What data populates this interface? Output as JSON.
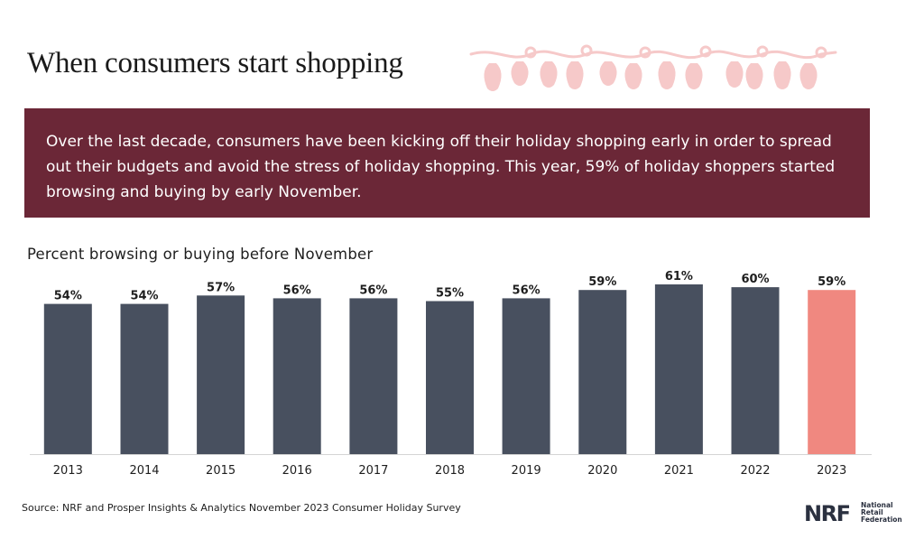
{
  "header": {
    "title": "When consumers start shopping"
  },
  "banner": {
    "text": "Over the last decade, consumers have been kicking off their holiday shopping early in order to spread out their budgets and avoid the stress of holiday shopping. This year, 59% of holiday shoppers started browsing and buying by early November."
  },
  "colors": {
    "bar_default": "#48505f",
    "bar_highlight": "#f08880",
    "banner_bg": "#6b2737",
    "lights": "#f6c9c9"
  },
  "chart_data": {
    "type": "bar",
    "title": "Percent browsing or buying before November",
    "xlabel": "",
    "ylabel": "",
    "ylim": [
      0,
      61
    ],
    "grid": false,
    "categories": [
      "2013",
      "2014",
      "2015",
      "2016",
      "2017",
      "2018",
      "2019",
      "2020",
      "2021",
      "2022",
      "2023"
    ],
    "values": [
      54,
      54,
      57,
      56,
      56,
      55,
      56,
      59,
      61,
      60,
      59
    ],
    "data_labels": [
      "54%",
      "54%",
      "57%",
      "56%",
      "56%",
      "55%",
      "56%",
      "59%",
      "61%",
      "60%",
      "59%"
    ],
    "highlight_category": "2023"
  },
  "footer": {
    "source": "Source: NRF and Prosper Insights & Analytics November 2023 Consumer Holiday Survey",
    "logo_mark": "NRF",
    "logo_line1": "National",
    "logo_line2": "Retail",
    "logo_line3": "Federation"
  }
}
